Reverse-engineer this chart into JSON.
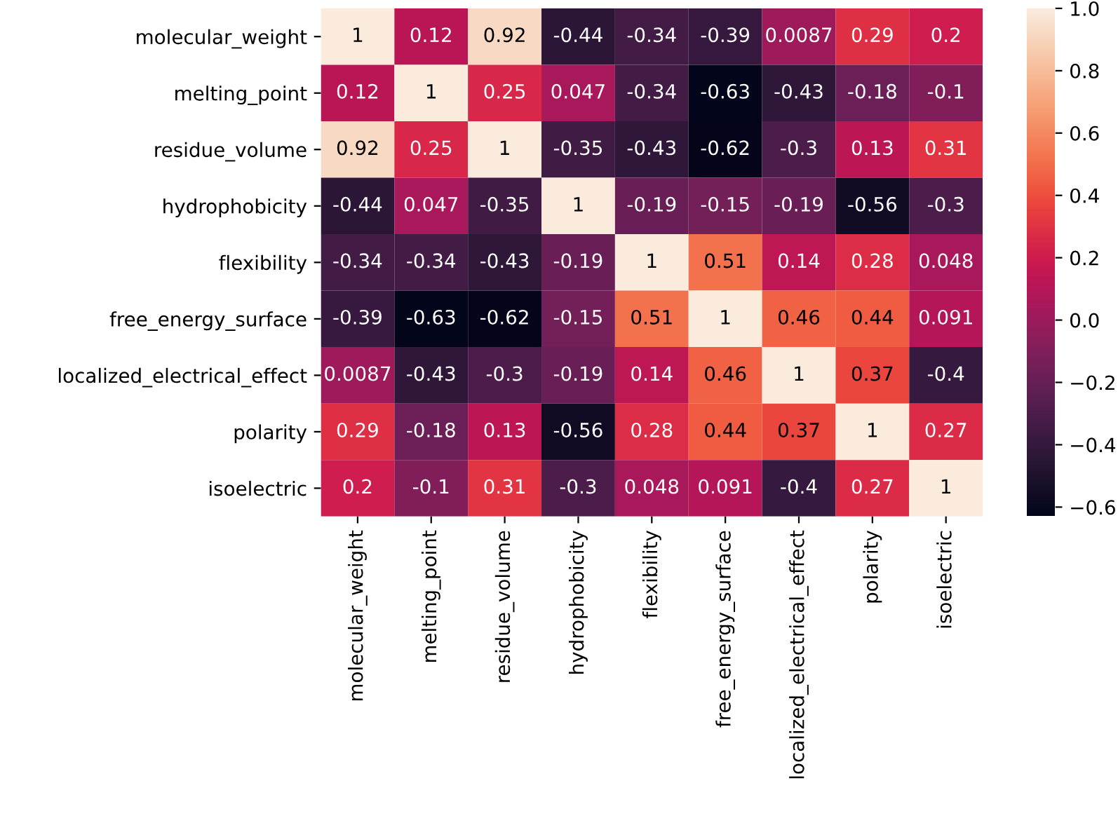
{
  "chart_data": {
    "type": "heatmap",
    "categories": [
      "molecular_weight",
      "melting_point",
      "residue_volume",
      "hydrophobicity",
      "flexibility",
      "free_energy_surface",
      "localized_electrical_effect",
      "polarity",
      "isoelectric"
    ],
    "y_categories": [
      "molecular_weight",
      "melting_point",
      "residue_volume",
      "hydrophobicity",
      "flexibility",
      "free_energy_surface",
      "localized_electrical_effect",
      "polarity",
      "isoelectric"
    ],
    "cells": [
      [
        1,
        0.12,
        0.92,
        -0.44,
        -0.34,
        -0.39,
        0.0087,
        0.29,
        0.2
      ],
      [
        0.12,
        1,
        0.25,
        0.047,
        -0.34,
        -0.63,
        -0.43,
        -0.18,
        -0.1
      ],
      [
        0.92,
        0.25,
        1,
        -0.35,
        -0.43,
        -0.62,
        -0.3,
        0.13,
        0.31
      ],
      [
        -0.44,
        0.047,
        -0.35,
        1,
        -0.19,
        -0.15,
        -0.19,
        -0.56,
        -0.3
      ],
      [
        -0.34,
        -0.34,
        -0.43,
        -0.19,
        1,
        0.51,
        0.14,
        0.28,
        0.048
      ],
      [
        -0.39,
        -0.63,
        -0.62,
        -0.15,
        0.51,
        1,
        0.46,
        0.44,
        0.091
      ],
      [
        0.0087,
        -0.43,
        -0.3,
        -0.19,
        0.14,
        0.46,
        1,
        0.37,
        -0.4
      ],
      [
        0.29,
        -0.18,
        0.13,
        -0.56,
        0.28,
        0.44,
        0.37,
        1,
        0.27
      ],
      [
        0.2,
        -0.1,
        0.31,
        -0.3,
        0.048,
        0.091,
        -0.4,
        0.27,
        1
      ]
    ],
    "cell_labels": [
      [
        "1",
        "0.12",
        "0.92",
        "-0.44",
        "-0.34",
        "-0.39",
        "0.0087",
        "0.29",
        "0.2"
      ],
      [
        "0.12",
        "1",
        "0.25",
        "0.047",
        "-0.34",
        "-0.63",
        "-0.43",
        "-0.18",
        "-0.1"
      ],
      [
        "0.92",
        "0.25",
        "1",
        "-0.35",
        "-0.43",
        "-0.62",
        "-0.3",
        "0.13",
        "0.31"
      ],
      [
        "-0.44",
        "0.047",
        "-0.35",
        "1",
        "-0.19",
        "-0.15",
        "-0.19",
        "-0.56",
        "-0.3"
      ],
      [
        "-0.34",
        "-0.34",
        "-0.43",
        "-0.19",
        "1",
        "0.51",
        "0.14",
        "0.28",
        "0.048"
      ],
      [
        "-0.39",
        "-0.63",
        "-0.62",
        "-0.15",
        "0.51",
        "1",
        "0.46",
        "0.44",
        "0.091"
      ],
      [
        "0.0087",
        "-0.43",
        "-0.3",
        "-0.19",
        "0.14",
        "0.46",
        "1",
        "0.37",
        "-0.4"
      ],
      [
        "0.29",
        "-0.18",
        "0.13",
        "-0.56",
        "0.28",
        "0.44",
        "0.37",
        "1",
        "0.27"
      ],
      [
        "0.2",
        "-0.1",
        "0.31",
        "-0.3",
        "0.048",
        "0.091",
        "-0.4",
        "0.27",
        "1"
      ]
    ],
    "clim": [
      -0.63,
      1
    ],
    "cticks": [
      {
        "value": -0.6,
        "label": "−0.6"
      },
      {
        "value": -0.4,
        "label": "−0.4"
      },
      {
        "value": -0.2,
        "label": "−0.2"
      },
      {
        "value": 0.0,
        "label": "0.0"
      },
      {
        "value": 0.2,
        "label": "0.2"
      },
      {
        "value": 0.4,
        "label": "0.4"
      },
      {
        "value": 0.6,
        "label": "0.6"
      },
      {
        "value": 0.8,
        "label": "0.8"
      },
      {
        "value": 1.0,
        "label": "1.0"
      }
    ]
  }
}
